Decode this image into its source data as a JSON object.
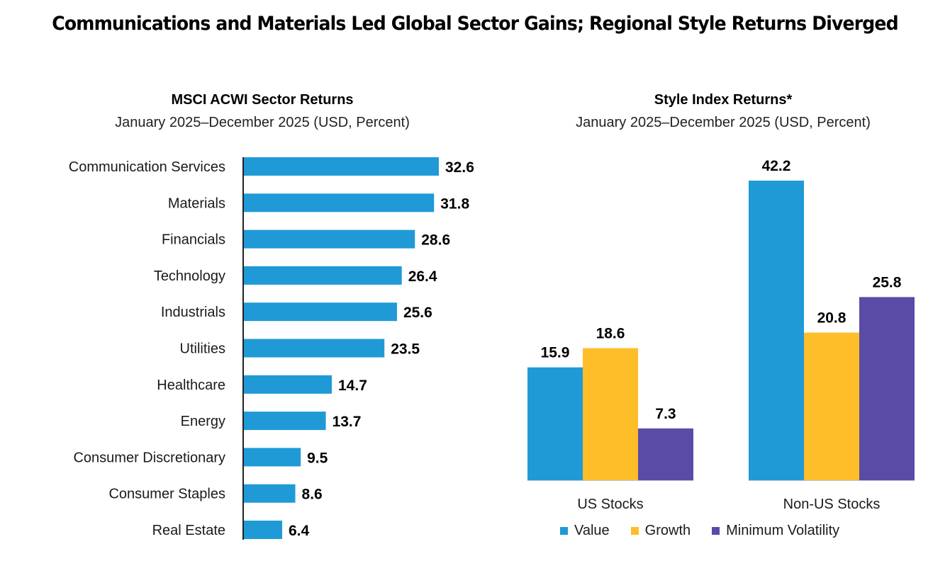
{
  "title": "Communications and Materials Led Global Sector Gains; Regional Style Returns Diverged",
  "colors": {
    "value": "#1f9ad6",
    "growth": "#fdbe29",
    "min_vol": "#5a4ba6",
    "axis": "#222222"
  },
  "chart_data": [
    {
      "type": "bar",
      "orientation": "horizontal",
      "title": "MSCI ACWI Sector Returns",
      "subtitle": "January 2025–December 2025 (USD, Percent)",
      "xlabel": "",
      "ylabel": "",
      "grid": false,
      "categories": [
        "Communication Services",
        "Materials",
        "Financials",
        "Technology",
        "Industrials",
        "Utilities",
        "Healthcare",
        "Energy",
        "Consumer Discretionary",
        "Consumer Staples",
        "Real Estate"
      ],
      "values": [
        32.6,
        31.8,
        28.6,
        26.4,
        25.6,
        23.5,
        14.7,
        13.7,
        9.5,
        8.6,
        6.4
      ],
      "value_labels": [
        "32.6",
        "31.8",
        "28.6",
        "26.4",
        "25.6",
        "23.5",
        "14.7",
        "13.7",
        "9.5",
        "8.6",
        "6.4"
      ],
      "xlim": [
        0,
        35
      ]
    },
    {
      "type": "bar",
      "orientation": "vertical",
      "title": "Style Index Returns*",
      "subtitle": "January 2025–December 2025 (USD, Percent)",
      "xlabel": "",
      "ylabel": "",
      "grid": false,
      "categories": [
        "US Stocks",
        "Non-US Stocks"
      ],
      "series": [
        {
          "name": "Value",
          "values": [
            15.9,
            42.2
          ],
          "labels": [
            "15.9",
            "42.2"
          ]
        },
        {
          "name": "Growth",
          "values": [
            18.6,
            20.8
          ],
          "labels": [
            "18.6",
            "20.8"
          ]
        },
        {
          "name": "Minimum Volatility",
          "values": [
            7.3,
            25.8
          ],
          "labels": [
            "7.3",
            "25.8"
          ]
        }
      ],
      "ylim": [
        0,
        45
      ],
      "legend": "bottom"
    }
  ]
}
